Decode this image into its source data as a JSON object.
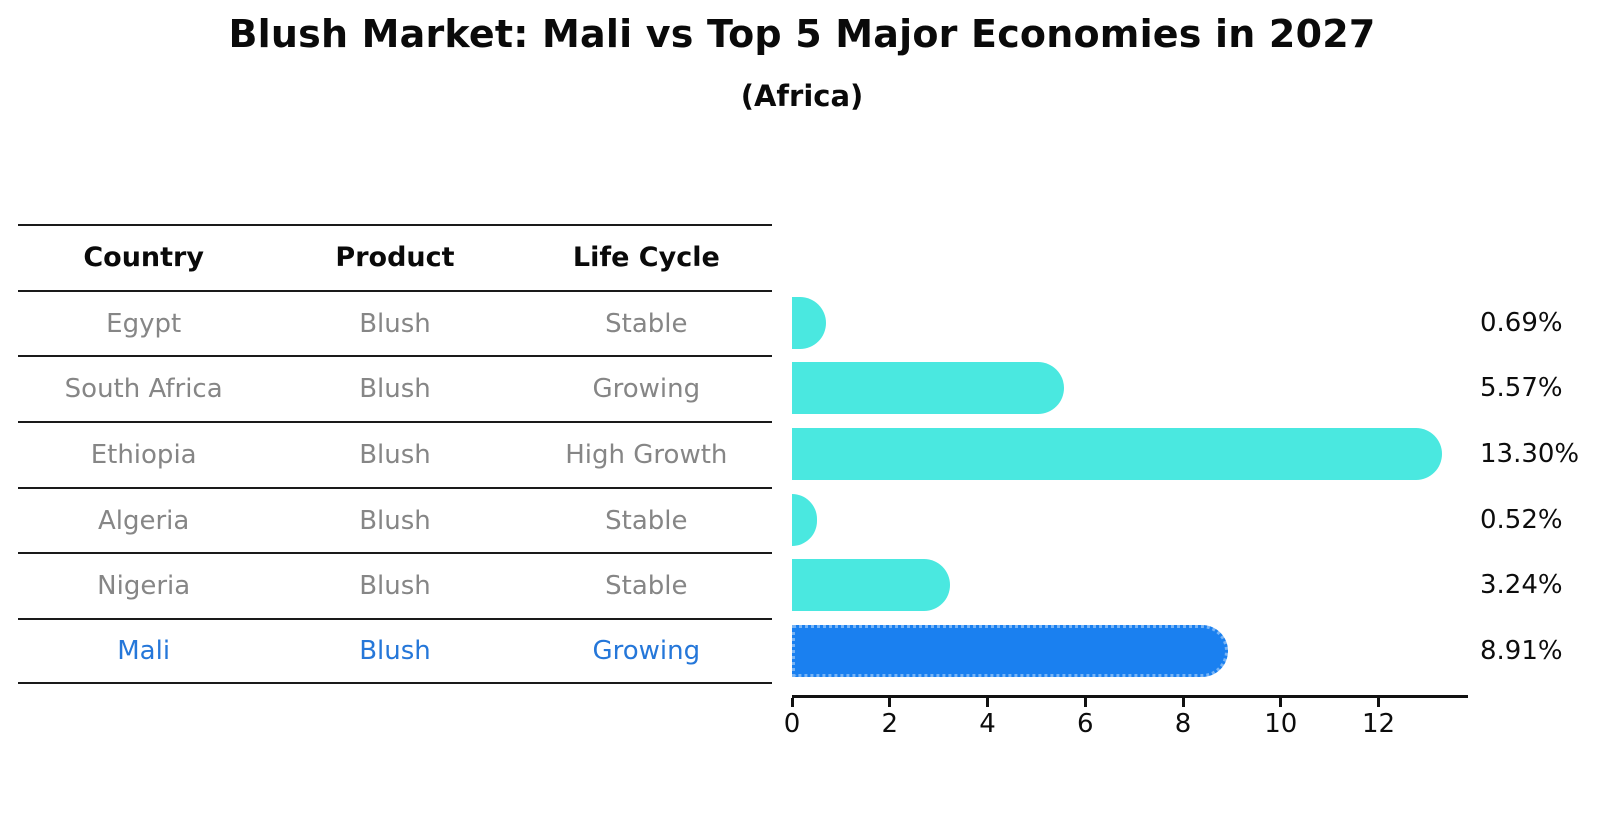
{
  "title": "Blush Market: Mali vs Top 5 Major Economies in 2027",
  "subtitle": "(Africa)",
  "table": {
    "headers": [
      "Country",
      "Product",
      "Life Cycle"
    ],
    "rows": [
      {
        "country": "Egypt",
        "product": "Blush",
        "life_cycle": "Stable",
        "highlight": false
      },
      {
        "country": "South Africa",
        "product": "Blush",
        "life_cycle": "Growing",
        "highlight": false
      },
      {
        "country": "Ethiopia",
        "product": "Blush",
        "life_cycle": "High Growth",
        "highlight": false
      },
      {
        "country": "Algeria",
        "product": "Blush",
        "life_cycle": "Stable",
        "highlight": false
      },
      {
        "country": "Nigeria",
        "product": "Blush",
        "life_cycle": "Stable",
        "highlight": false
      },
      {
        "country": "Mali",
        "product": "Blush",
        "life_cycle": "Growing",
        "highlight": true
      }
    ]
  },
  "chart_data": {
    "type": "bar",
    "orientation": "horizontal",
    "title": "Blush Market: Mali vs Top 5 Major Economies in 2027",
    "subtitle": "(Africa)",
    "categories": [
      "Egypt",
      "South Africa",
      "Ethiopia",
      "Algeria",
      "Nigeria",
      "Mali"
    ],
    "values": [
      0.69,
      5.57,
      13.3,
      0.52,
      3.24,
      8.91
    ],
    "value_labels": [
      "0.69%",
      "5.57%",
      "13.30%",
      "0.52%",
      "3.24%",
      "8.91%"
    ],
    "xlabel": "",
    "ylabel": "",
    "xlim": [
      0,
      13.83
    ],
    "x_ticks": [
      0,
      2,
      4,
      6,
      8,
      10,
      12
    ],
    "grid": false,
    "legend": false,
    "highlight_index": 5,
    "colors": {
      "bar": "#4ae8e0",
      "highlight_bar": "#1a80f0",
      "highlight_border": "#78b4f5",
      "highlight_text": "#2577d9",
      "table_text": "#868686",
      "text": "#0a0a0a",
      "axis": "#111111"
    }
  }
}
